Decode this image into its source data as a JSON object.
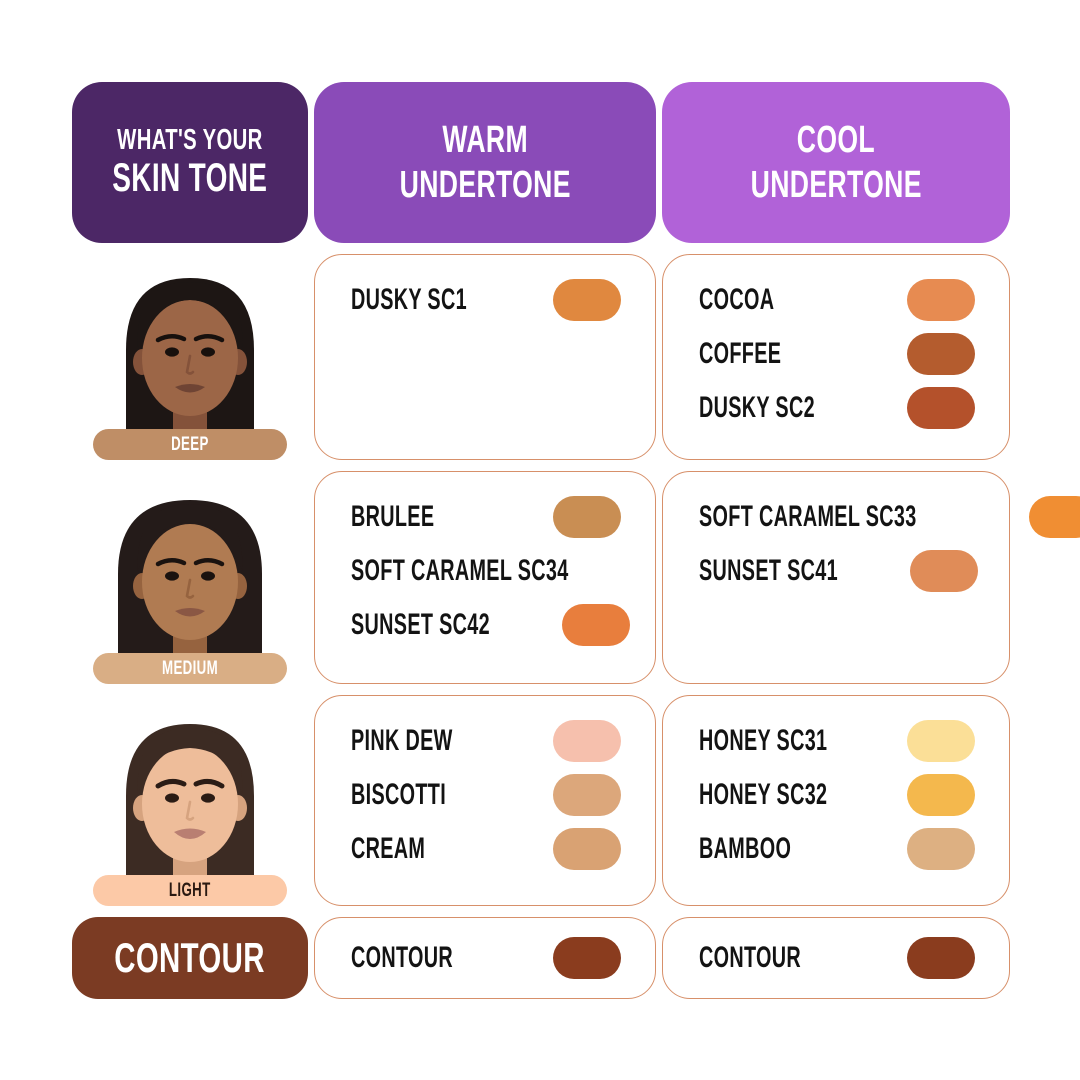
{
  "header": {
    "skin_q_line1": "WHAT'S YOUR",
    "skin_q_line2": "SKIN TONE",
    "warm_line1": "WARM",
    "warm_line2": "UNDERTONE",
    "cool_line1": "COOL",
    "cool_line2": "UNDERTONE"
  },
  "colors": {
    "header_dark_purple": "#4c2766",
    "header_warm_purple": "#8a4bb8",
    "header_cool_purple": "#b162d8",
    "card_border": "#d7906a",
    "contour_box_brown": "#7b3b23",
    "pill_deep": "#bf8e66",
    "pill_medium": "#d9ae85",
    "pill_light": "#fcc9a7"
  },
  "rows": [
    {
      "tone": "DEEP",
      "pill_color": "#bf8e66",
      "pill_text": "#ffffff",
      "warm_shades": [
        {
          "name": "DUSKY SC1",
          "color": "#e0883f"
        }
      ],
      "cool_shades": [
        {
          "name": "COCOA",
          "color": "#e78b51"
        },
        {
          "name": "COFFEE",
          "color": "#b45c2e"
        },
        {
          "name": "DUSKY SC2",
          "color": "#b4512b"
        }
      ]
    },
    {
      "tone": "MEDIUM",
      "pill_color": "#d9ae85",
      "pill_text": "#ffffff",
      "warm_shades": [
        {
          "name": "BRULEE",
          "color": "#c98e53"
        },
        {
          "name": "SOFT CARAMEL SC34",
          "color": "#f0a264"
        },
        {
          "name": "SUNSET SC42",
          "color": "#e87e3d"
        }
      ],
      "cool_shades": [
        {
          "name": "SOFT CARAMEL SC33",
          "color": "#f08e33"
        },
        {
          "name": "SUNSET SC41",
          "color": "#e08c58"
        }
      ]
    },
    {
      "tone": "LIGHT",
      "pill_color": "#fcc9a7",
      "pill_text": "#2b1a12",
      "warm_shades": [
        {
          "name": "PINK DEW",
          "color": "#f6c0ad"
        },
        {
          "name": "BISCOTTI",
          "color": "#dca77b"
        },
        {
          "name": "CREAM",
          "color": "#d9a273"
        }
      ],
      "cool_shades": [
        {
          "name": "HONEY SC31",
          "color": "#fbdf97"
        },
        {
          "name": "HONEY SC32",
          "color": "#f4b84d"
        },
        {
          "name": "BAMBOO",
          "color": "#ddb082"
        }
      ]
    }
  ],
  "contour": {
    "label": "CONTOUR",
    "warm_shades": [
      {
        "name": "CONTOUR",
        "color": "#8a3c1e"
      }
    ],
    "cool_shades": [
      {
        "name": "CONTOUR",
        "color": "#8a3c1e"
      }
    ]
  }
}
